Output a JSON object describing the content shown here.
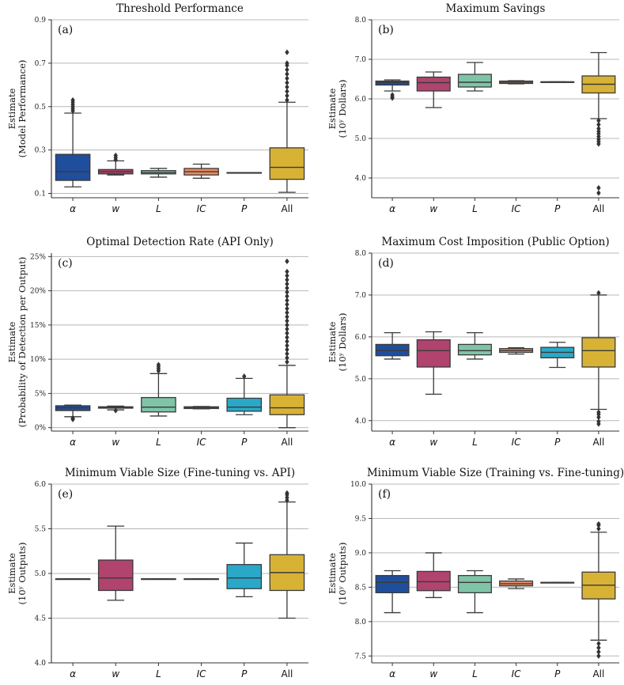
{
  "palette": {
    "alpha": "#1f4e9c",
    "w": "#b0446f",
    "L": "#7fc4a7",
    "IC": "#e98c62",
    "P": "#2aa8c8",
    "All": "#d8b235"
  },
  "chart_data": [
    {
      "id": "a",
      "type": "box",
      "panel_label": "(a)",
      "title": "Threshold Performance",
      "ylabel": [
        "Estimate",
        "(Model Performance)"
      ],
      "ylim": [
        0.08,
        0.9
      ],
      "yticks": [
        0.1,
        0.3,
        0.5,
        0.7,
        0.9
      ],
      "ytick_labels": [
        "0.1",
        "0.3",
        "0.5",
        "0.7",
        "0.9"
      ],
      "grid": true,
      "categories": [
        "α",
        "w",
        "L",
        "IC",
        "P",
        "All"
      ],
      "boxes": [
        {
          "category": "α",
          "q1": 0.16,
          "median": 0.2,
          "q3": 0.28,
          "whisker_low": 0.13,
          "whisker_high": 0.47,
          "outliers": [
            0.48,
            0.49,
            0.5,
            0.51,
            0.52,
            0.53
          ]
        },
        {
          "category": "w",
          "q1": 0.19,
          "median": 0.2,
          "q3": 0.21,
          "whisker_low": 0.185,
          "whisker_high": 0.25,
          "outliers": [
            0.255,
            0.265,
            0.275
          ]
        },
        {
          "category": "L",
          "q1": 0.19,
          "median": 0.196,
          "q3": 0.205,
          "whisker_low": 0.175,
          "whisker_high": 0.215,
          "outliers": []
        },
        {
          "category": "IC",
          "q1": 0.185,
          "median": 0.2,
          "q3": 0.215,
          "whisker_low": 0.17,
          "whisker_high": 0.235,
          "outliers": []
        },
        {
          "category": "P",
          "q1": 0.196,
          "median": 0.196,
          "q3": 0.196,
          "whisker_low": 0.196,
          "whisker_high": 0.196,
          "outliers": []
        },
        {
          "category": "All",
          "q1": 0.165,
          "median": 0.22,
          "q3": 0.31,
          "whisker_low": 0.105,
          "whisker_high": 0.52,
          "outliers": [
            0.53,
            0.55,
            0.57,
            0.59,
            0.61,
            0.63,
            0.65,
            0.67,
            0.69,
            0.7,
            0.75
          ]
        }
      ]
    },
    {
      "id": "b",
      "type": "box",
      "panel_label": "(b)",
      "title": "Maximum Savings",
      "ylabel": [
        "Estimate",
        "(10ʸ Dollars)"
      ],
      "ylim": [
        3.5,
        8.0
      ],
      "yticks": [
        4.0,
        5.0,
        6.0,
        7.0,
        8.0
      ],
      "ytick_labels": [
        "4.0",
        "5.0",
        "6.0",
        "7.0",
        "8.0"
      ],
      "grid": true,
      "categories": [
        "α",
        "w",
        "L",
        "IC",
        "P",
        "All"
      ],
      "boxes": [
        {
          "category": "α",
          "q1": 6.35,
          "median": 6.41,
          "q3": 6.45,
          "whisker_low": 6.2,
          "whisker_high": 6.48,
          "outliers": [
            6.1,
            6.05,
            6.02
          ]
        },
        {
          "category": "w",
          "q1": 6.2,
          "median": 6.41,
          "q3": 6.55,
          "whisker_low": 5.78,
          "whisker_high": 6.68,
          "outliers": []
        },
        {
          "category": "L",
          "q1": 6.3,
          "median": 6.42,
          "q3": 6.62,
          "whisker_low": 6.2,
          "whisker_high": 6.92,
          "outliers": []
        },
        {
          "category": "IC",
          "q1": 6.39,
          "median": 6.42,
          "q3": 6.45,
          "whisker_low": 6.38,
          "whisker_high": 6.46,
          "outliers": []
        },
        {
          "category": "P",
          "q1": 6.43,
          "median": 6.43,
          "q3": 6.43,
          "whisker_low": 6.43,
          "whisker_high": 6.43,
          "outliers": []
        },
        {
          "category": "All",
          "q1": 6.15,
          "median": 6.37,
          "q3": 6.58,
          "whisker_low": 5.5,
          "whisker_high": 7.17,
          "outliers": [
            5.45,
            5.35,
            5.25,
            5.18,
            5.12,
            5.05,
            4.98,
            4.92,
            4.86,
            3.75,
            3.62
          ]
        }
      ]
    },
    {
      "id": "c",
      "type": "box",
      "panel_label": "(c)",
      "title": "Optimal Detection Rate (API Only)",
      "ylabel": [
        "Estimate",
        "(Probability of Detection per Output)"
      ],
      "ylim": [
        -0.5,
        25.5
      ],
      "yticks": [
        0,
        5,
        10,
        15,
        20,
        25
      ],
      "ytick_labels": [
        "0%",
        "5%",
        "10%",
        "15%",
        "20%",
        "25%"
      ],
      "grid": true,
      "categories": [
        "α",
        "w",
        "L",
        "IC",
        "P",
        "All"
      ],
      "boxes": [
        {
          "category": "α",
          "q1": 2.5,
          "median": 2.9,
          "q3": 3.2,
          "whisker_low": 1.6,
          "whisker_high": 3.3,
          "outliers": [
            1.4,
            1.2
          ]
        },
        {
          "category": "w",
          "q1": 2.85,
          "median": 2.95,
          "q3": 3.05,
          "whisker_low": 2.6,
          "whisker_high": 3.15,
          "outliers": [
            2.5
          ]
        },
        {
          "category": "L",
          "q1": 2.3,
          "median": 3.0,
          "q3": 4.4,
          "whisker_low": 1.7,
          "whisker_high": 7.9,
          "outliers": [
            8.3,
            8.6,
            8.9,
            9.2
          ]
        },
        {
          "category": "IC",
          "q1": 2.8,
          "median": 2.95,
          "q3": 3.05,
          "whisker_low": 2.75,
          "whisker_high": 3.1,
          "outliers": []
        },
        {
          "category": "P",
          "q1": 2.4,
          "median": 3.0,
          "q3": 4.3,
          "whisker_low": 1.9,
          "whisker_high": 7.2,
          "outliers": [
            7.5
          ]
        },
        {
          "category": "All",
          "q1": 1.9,
          "median": 2.9,
          "q3": 4.8,
          "whisker_low": 0.0,
          "whisker_high": 9.1,
          "outliers": [
            9.6,
            10.2,
            10.8,
            11.4,
            12.0,
            12.6,
            13.2,
            13.8,
            14.4,
            15.0,
            15.6,
            16.2,
            16.8,
            17.4,
            18.0,
            18.6,
            19.2,
            19.8,
            20.4,
            21.0,
            21.6,
            22.2,
            22.8,
            24.3
          ]
        }
      ]
    },
    {
      "id": "d",
      "type": "box",
      "panel_label": "(d)",
      "title": "Maximum Cost Imposition (Public Option)",
      "ylabel": [
        "Estimate",
        "(10ʸ Dollars)"
      ],
      "ylim": [
        3.75,
        8.0
      ],
      "yticks": [
        4.0,
        5.0,
        6.0,
        7.0,
        8.0
      ],
      "ytick_labels": [
        "4.0",
        "5.0",
        "6.0",
        "7.0",
        "8.0"
      ],
      "grid": true,
      "categories": [
        "α",
        "w",
        "L",
        "IC",
        "P",
        "All"
      ],
      "boxes": [
        {
          "category": "α",
          "q1": 5.55,
          "median": 5.67,
          "q3": 5.82,
          "whisker_low": 5.47,
          "whisker_high": 6.1,
          "outliers": []
        },
        {
          "category": "w",
          "q1": 5.28,
          "median": 5.67,
          "q3": 5.93,
          "whisker_low": 4.63,
          "whisker_high": 6.12,
          "outliers": []
        },
        {
          "category": "L",
          "q1": 5.57,
          "median": 5.67,
          "q3": 5.82,
          "whisker_low": 5.47,
          "whisker_high": 6.1,
          "outliers": []
        },
        {
          "category": "IC",
          "q1": 5.63,
          "median": 5.67,
          "q3": 5.72,
          "whisker_low": 5.59,
          "whisker_high": 5.74,
          "outliers": []
        },
        {
          "category": "P",
          "q1": 5.5,
          "median": 5.63,
          "q3": 5.75,
          "whisker_low": 5.27,
          "whisker_high": 5.87,
          "outliers": []
        },
        {
          "category": "All",
          "q1": 5.28,
          "median": 5.67,
          "q3": 5.98,
          "whisker_low": 4.27,
          "whisker_high": 7.0,
          "outliers": [
            7.05,
            4.2,
            4.15,
            4.08,
            3.98,
            3.92
          ]
        }
      ]
    },
    {
      "id": "e",
      "type": "box",
      "panel_label": "(e)",
      "title": "Minimum Viable Size (Fine-tuning vs. API)",
      "ylabel": [
        "Estimate",
        "(10ʸ Outputs)"
      ],
      "ylim": [
        4.0,
        6.0
      ],
      "yticks": [
        4.0,
        4.5,
        5.0,
        5.5,
        6.0
      ],
      "ytick_labels": [
        "4.0",
        "4.5",
        "5.0",
        "5.5",
        "6.0"
      ],
      "grid": true,
      "categories": [
        "α",
        "w",
        "L",
        "IC",
        "P",
        "All"
      ],
      "boxes": [
        {
          "category": "α",
          "q1": 4.94,
          "median": 4.94,
          "q3": 4.94,
          "whisker_low": 4.94,
          "whisker_high": 4.94,
          "outliers": []
        },
        {
          "category": "w",
          "q1": 4.81,
          "median": 4.95,
          "q3": 5.15,
          "whisker_low": 4.7,
          "whisker_high": 5.53,
          "outliers": []
        },
        {
          "category": "L",
          "q1": 4.94,
          "median": 4.94,
          "q3": 4.94,
          "whisker_low": 4.94,
          "whisker_high": 4.94,
          "outliers": []
        },
        {
          "category": "IC",
          "q1": 4.94,
          "median": 4.94,
          "q3": 4.94,
          "whisker_low": 4.94,
          "whisker_high": 4.94,
          "outliers": []
        },
        {
          "category": "P",
          "q1": 4.83,
          "median": 4.95,
          "q3": 5.1,
          "whisker_low": 4.74,
          "whisker_high": 5.34,
          "outliers": []
        },
        {
          "category": "All",
          "q1": 4.81,
          "median": 5.01,
          "q3": 5.21,
          "whisker_low": 4.5,
          "whisker_high": 5.8,
          "outliers": [
            5.82,
            5.85,
            5.88,
            5.9
          ]
        }
      ]
    },
    {
      "id": "f",
      "type": "box",
      "panel_label": "(f)",
      "title": "Minimum Viable Size (Training vs. Fine-tuning)",
      "ylabel": [
        "Estimate",
        "(10ʸ Outputs)"
      ],
      "ylim": [
        7.4,
        10.0
      ],
      "yticks": [
        7.5,
        8.0,
        8.5,
        9.0,
        9.5,
        10.0
      ],
      "ytick_labels": [
        "7.5",
        "8.0",
        "8.5",
        "9.0",
        "9.5",
        "10.0"
      ],
      "grid": true,
      "categories": [
        "α",
        "w",
        "L",
        "IC",
        "P",
        "All"
      ],
      "boxes": [
        {
          "category": "α",
          "q1": 8.42,
          "median": 8.57,
          "q3": 8.67,
          "whisker_low": 8.13,
          "whisker_high": 8.74,
          "outliers": []
        },
        {
          "category": "w",
          "q1": 8.45,
          "median": 8.58,
          "q3": 8.73,
          "whisker_low": 8.35,
          "whisker_high": 9.0,
          "outliers": []
        },
        {
          "category": "L",
          "q1": 8.42,
          "median": 8.57,
          "q3": 8.67,
          "whisker_low": 8.13,
          "whisker_high": 8.74,
          "outliers": []
        },
        {
          "category": "IC",
          "q1": 8.52,
          "median": 8.55,
          "q3": 8.59,
          "whisker_low": 8.48,
          "whisker_high": 8.62,
          "outliers": []
        },
        {
          "category": "P",
          "q1": 8.57,
          "median": 8.57,
          "q3": 8.57,
          "whisker_low": 8.57,
          "whisker_high": 8.57,
          "outliers": []
        },
        {
          "category": "All",
          "q1": 8.33,
          "median": 8.53,
          "q3": 8.72,
          "whisker_low": 7.73,
          "whisker_high": 9.3,
          "outliers": [
            9.35,
            9.4,
            9.42,
            7.68,
            7.62,
            7.56,
            7.5
          ]
        }
      ]
    }
  ]
}
